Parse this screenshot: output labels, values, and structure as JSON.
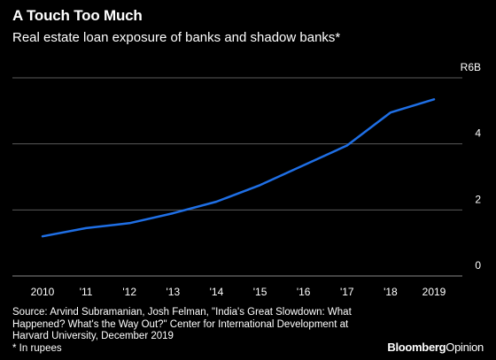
{
  "header": {
    "title": "A Touch Too Much",
    "subtitle": "Real estate loan exposure of banks and shadow banks*"
  },
  "chart_data": {
    "type": "line",
    "title": "A Touch Too Much",
    "subtitle": "Real estate loan exposure of banks and shadow banks*",
    "x": [
      2010,
      2011,
      2012,
      2013,
      2014,
      2015,
      2016,
      2017,
      2018,
      2019
    ],
    "x_tick_labels": [
      "2010",
      "'11",
      "'12",
      "'13",
      "'14",
      "'15",
      "'16",
      "'17",
      "'18",
      "2019"
    ],
    "series": [
      {
        "values": [
          1.2,
          1.45,
          1.6,
          1.9,
          2.25,
          2.75,
          3.35,
          3.95,
          4.95,
          5.35
        ]
      }
    ],
    "y_ticks": [
      0,
      2,
      4,
      6
    ],
    "y_tick_labels": [
      "0",
      "2",
      "4",
      "R6B"
    ],
    "ylim": [
      0,
      6
    ],
    "xlim": [
      2010,
      2019
    ],
    "grid": true,
    "line_color": "#1f6fe5",
    "grid_color": "#5a5a5a"
  },
  "footer": {
    "source": "Source: Arvind Subramanian, Josh Felman, \"India's Great Slowdown: What Happened? What's the Way Out?\" Center for International Development at Harvard University, December 2019",
    "note": "* In rupees",
    "brand_bold": "Bloomberg",
    "brand_light": "Opinion"
  }
}
